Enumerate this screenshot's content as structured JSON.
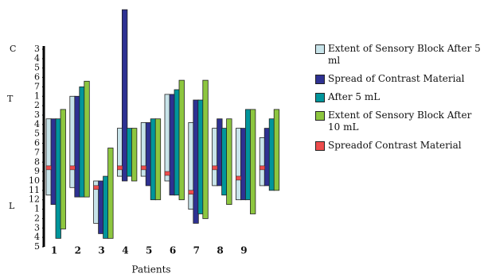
{
  "chart_data": {
    "type": "floating-bar",
    "x_label": "Patients",
    "annotations": [
      "C",
      "T",
      "L"
    ],
    "categories": [
      "1",
      "2",
      "3",
      "4",
      "5",
      "6",
      "7",
      "8",
      "9",
      null
    ],
    "ylim": [
      -4.3,
      21
    ],
    "y_reversed": true,
    "yticks": [
      {
        "value": 0,
        "label": "3"
      },
      {
        "value": 1,
        "label": "4"
      },
      {
        "value": 2,
        "label": "5"
      },
      {
        "value": 3,
        "label": "6"
      },
      {
        "value": 4,
        "label": "7"
      },
      {
        "value": 5,
        "label": "1"
      },
      {
        "value": 6,
        "label": "2"
      },
      {
        "value": 7,
        "label": "3"
      },
      {
        "value": 8,
        "label": "4"
      },
      {
        "value": 9,
        "label": "5"
      },
      {
        "value": 10,
        "label": "6"
      },
      {
        "value": 11,
        "label": "7"
      },
      {
        "value": 12,
        "label": "8"
      },
      {
        "value": 13,
        "label": "9"
      },
      {
        "value": 14,
        "label": "10"
      },
      {
        "value": 15,
        "label": "11"
      },
      {
        "value": 16,
        "label": "12"
      },
      {
        "value": 17,
        "label": "1"
      },
      {
        "value": 18,
        "label": "2"
      },
      {
        "value": 19,
        "label": "3"
      },
      {
        "value": 20,
        "label": "4"
      },
      {
        "value": 21,
        "label": "5"
      }
    ],
    "series": [
      {
        "name": "Extent of Sensory Block After 5 ml",
        "color": "#c8e4ea",
        "values": [
          [
            7.4,
            15.5
          ],
          [
            5.0,
            14.7
          ],
          [
            14.0,
            18.5
          ],
          [
            8.4,
            13.5
          ],
          [
            7.8,
            13.5
          ],
          [
            4.8,
            14.0
          ],
          [
            7.8,
            17.0
          ],
          [
            8.4,
            14.5
          ],
          [
            8.4,
            16.0
          ],
          [
            9.4,
            14.5
          ]
        ]
      },
      {
        "name": "Spread of Contrast Material",
        "color": "#2e3192",
        "values": [
          [
            7.4,
            16.5
          ],
          [
            5.0,
            15.7
          ],
          [
            14.0,
            19.6
          ],
          [
            -4.2,
            14.0
          ],
          [
            7.8,
            14.5
          ],
          [
            4.8,
            15.5
          ],
          [
            5.4,
            18.5
          ],
          [
            7.4,
            14.5
          ],
          [
            8.4,
            16.0
          ],
          [
            8.4,
            14.5
          ]
        ]
      },
      {
        "name": "After 5 mL",
        "color": "#00959b",
        "values": [
          [
            7.4,
            20.1
          ],
          [
            4.0,
            15.7
          ],
          [
            13.5,
            20.1
          ],
          [
            8.4,
            13.5
          ],
          [
            7.4,
            16.0
          ],
          [
            4.3,
            15.5
          ],
          [
            5.4,
            17.5
          ],
          [
            8.4,
            15.5
          ],
          [
            6.4,
            16.0
          ],
          [
            7.4,
            15.0
          ]
        ]
      },
      {
        "name": "Extent of Sensory Block After 10 mL",
        "color": "#8dc63f",
        "values": [
          [
            6.4,
            19.1
          ],
          [
            3.4,
            15.7
          ],
          [
            10.5,
            20.1
          ],
          [
            8.4,
            14.0
          ],
          [
            7.4,
            16.0
          ],
          [
            3.3,
            16.0
          ],
          [
            3.3,
            18.0
          ],
          [
            7.4,
            16.5
          ],
          [
            6.4,
            17.5
          ],
          [
            6.4,
            15.0
          ]
        ]
      },
      {
        "name": "Spreadof Contrast Material",
        "color": "#ed4c4c",
        "values": [
          12.6,
          12.6,
          14.7,
          12.6,
          12.6,
          13.2,
          15.2,
          12.6,
          13.7,
          12.6
        ]
      }
    ]
  }
}
